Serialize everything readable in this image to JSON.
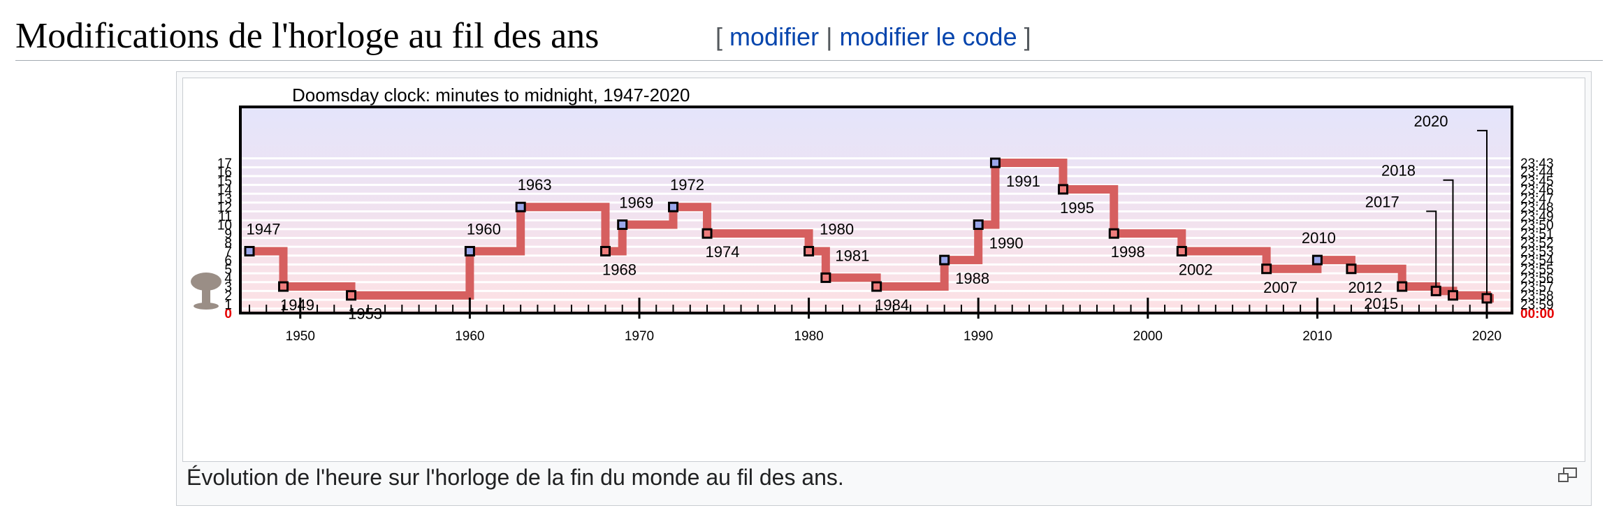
{
  "section": {
    "title": "Modifications de l'horloge au fil des ans",
    "open_bracket": "[",
    "edit_label": "modifier",
    "separator": "|",
    "edit_code_label": "modifier le code",
    "close_bracket": "]"
  },
  "figure": {
    "caption": "Évolution de l'heure sur l'horloge de la fin du monde au fil des ans.",
    "magnify_icon": "magnify-clip-icon"
  },
  "colors": {
    "line": "#d65f5f",
    "marker_increase": "#9aa6ea",
    "marker_decrease": "#ef7d7d",
    "zero_label": "#e60000",
    "band_top": "#e4e4fb",
    "band_bottom": "#fde1e4",
    "mushroom_icon": "#9a8e86"
  },
  "chart_data": {
    "type": "line",
    "step": "post",
    "title": "Doomsday clock: minutes to midnight, 1947-2020",
    "xlabel": "",
    "ylabel": "",
    "xlim": [
      1946,
      2020.6
    ],
    "ylim": [
      0,
      17
    ],
    "x_ticks": [
      1950,
      1960,
      1970,
      1980,
      1990,
      2000,
      2010,
      2020
    ],
    "y_ticks_left": [
      "0",
      "1",
      "2",
      "3",
      "4",
      "5",
      "6",
      "7",
      "8",
      "9",
      "10",
      "11",
      "12",
      "13",
      "14",
      "15",
      "16",
      "17"
    ],
    "y_ticks_right": [
      "00:00",
      "23:59",
      "23:58",
      "23:57",
      "23:56",
      "23:55",
      "23:54",
      "23:53",
      "23:52",
      "23:51",
      "23:50",
      "23:49",
      "23:48",
      "23:47",
      "23:46",
      "23:45",
      "23:44",
      "23:43"
    ],
    "series": [
      {
        "points": [
          {
            "x": 1947,
            "y": 7
          },
          {
            "x": 1949,
            "y": 3
          },
          {
            "x": 1953,
            "y": 2
          },
          {
            "x": 1960,
            "y": 7
          },
          {
            "x": 1963,
            "y": 12
          },
          {
            "x": 1968,
            "y": 7
          },
          {
            "x": 1969,
            "y": 10
          },
          {
            "x": 1972,
            "y": 12
          },
          {
            "x": 1974,
            "y": 9
          },
          {
            "x": 1980,
            "y": 7
          },
          {
            "x": 1981,
            "y": 4
          },
          {
            "x": 1984,
            "y": 3
          },
          {
            "x": 1988,
            "y": 6
          },
          {
            "x": 1990,
            "y": 10
          },
          {
            "x": 1991,
            "y": 17
          },
          {
            "x": 1995,
            "y": 14
          },
          {
            "x": 1998,
            "y": 9
          },
          {
            "x": 2002,
            "y": 7
          },
          {
            "x": 2007,
            "y": 5
          },
          {
            "x": 2010,
            "y": 6
          },
          {
            "x": 2012,
            "y": 5
          },
          {
            "x": 2015,
            "y": 3
          },
          {
            "x": 2017,
            "y": 2.5
          },
          {
            "x": 2018,
            "y": 2
          },
          {
            "x": 2020,
            "y": 1.67
          }
        ]
      }
    ],
    "annotations": [
      "1947",
      "1949",
      "1953",
      "1960",
      "1963",
      "1968",
      "1969",
      "1972",
      "1974",
      "1980",
      "1981",
      "1984",
      "1988",
      "1990",
      "1991",
      "1995",
      "1998",
      "2002",
      "2007",
      "2010",
      "2012",
      "2015",
      "2017",
      "2018",
      "2020"
    ],
    "grid": true,
    "legend": "none"
  }
}
